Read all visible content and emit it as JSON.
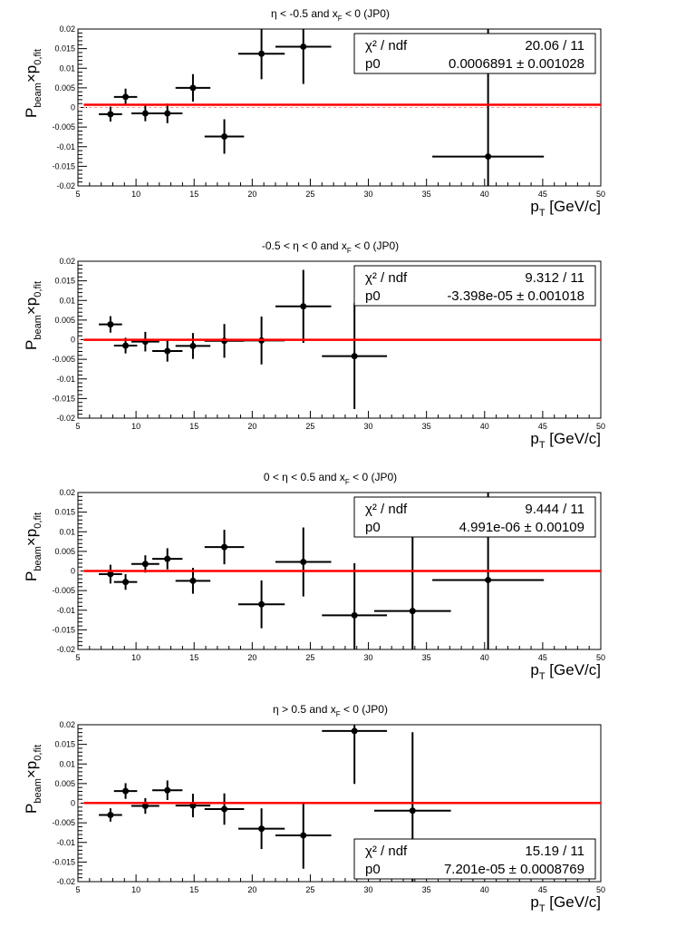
{
  "chart_data": [
    {
      "type": "scatter",
      "title": {
        "pre": "η < -0.5 and x",
        "sub": "F",
        "post": " < 0 (JP0)"
      },
      "xlabel": {
        "main": "p",
        "sub": "T",
        "rest": " [GeV/c]"
      },
      "ylabel": {
        "a": "P",
        "a_sub": "beam",
        "b": "×p",
        "b_sub": "0,fit"
      },
      "xlim": [
        5,
        50
      ],
      "ylim": [
        -0.02,
        0.02
      ],
      "grid": false,
      "stats_box": {
        "position": "top-right",
        "chi2_label": "χ² / ndf",
        "chi2_value": "20.06 / 11",
        "p0_label": "p0",
        "p0_value": "0.0006891 ± 0.001028"
      },
      "fit": {
        "p0": 0.0006891,
        "x_range": [
          5.5,
          50
        ]
      },
      "points": [
        {
          "x": 7.8,
          "y": -0.0017,
          "xerr": 1.0,
          "yerr": 0.0019
        },
        {
          "x": 9.1,
          "y": 0.0027,
          "xerr": 1.0,
          "yerr": 0.0021
        },
        {
          "x": 10.8,
          "y": -0.0015,
          "xerr": 1.2,
          "yerr": 0.002
        },
        {
          "x": 12.7,
          "y": -0.0015,
          "xerr": 1.3,
          "yerr": 0.0025
        },
        {
          "x": 14.9,
          "y": 0.005,
          "xerr": 1.5,
          "yerr": 0.0035
        },
        {
          "x": 17.6,
          "y": -0.0074,
          "xerr": 1.7,
          "yerr": 0.0044
        },
        {
          "x": 20.8,
          "y": 0.0137,
          "xerr": 2.0,
          "yerr": 0.0065
        },
        {
          "x": 24.4,
          "y": 0.0155,
          "xerr": 2.4,
          "yerr": 0.0095
        },
        {
          "x": 40.3,
          "y": -0.0125,
          "xerr": 4.8,
          "yerr": 0.033
        }
      ]
    },
    {
      "type": "scatter",
      "title": {
        "pre": "-0.5 < η < 0 and x",
        "sub": "F",
        "post": " < 0 (JP0)"
      },
      "xlabel": {
        "main": "p",
        "sub": "T",
        "rest": " [GeV/c]"
      },
      "ylabel": {
        "a": "P",
        "a_sub": "beam",
        "b": "×p",
        "b_sub": "0,fit"
      },
      "xlim": [
        5,
        50
      ],
      "ylim": [
        -0.02,
        0.02
      ],
      "grid": false,
      "stats_box": {
        "position": "top-right",
        "chi2_label": "χ² / ndf",
        "chi2_value": "9.312 / 11",
        "p0_label": "p0",
        "p0_value": "-3.398e-05 ± 0.001018"
      },
      "fit": {
        "p0": -3.398e-05,
        "x_range": [
          5.5,
          50
        ]
      },
      "points": [
        {
          "x": 7.8,
          "y": 0.0039,
          "xerr": 1.0,
          "yerr": 0.0021
        },
        {
          "x": 9.1,
          "y": -0.0015,
          "xerr": 1.0,
          "yerr": 0.002
        },
        {
          "x": 10.8,
          "y": -0.0005,
          "xerr": 1.2,
          "yerr": 0.0025
        },
        {
          "x": 12.7,
          "y": -0.0029,
          "xerr": 1.3,
          "yerr": 0.0027
        },
        {
          "x": 14.9,
          "y": -0.0016,
          "xerr": 1.5,
          "yerr": 0.0033
        },
        {
          "x": 17.6,
          "y": -0.0003,
          "xerr": 1.7,
          "yerr": 0.0043
        },
        {
          "x": 20.8,
          "y": -0.0002,
          "xerr": 2.0,
          "yerr": 0.0061
        },
        {
          "x": 24.4,
          "y": 0.0085,
          "xerr": 2.4,
          "yerr": 0.0093
        },
        {
          "x": 28.8,
          "y": -0.0042,
          "xerr": 2.8,
          "yerr": 0.0135
        }
      ]
    },
    {
      "type": "scatter",
      "title": {
        "pre": "0 < η < 0.5 and x",
        "sub": "F",
        "post": " < 0 (JP0)"
      },
      "xlabel": {
        "main": "p",
        "sub": "T",
        "rest": " [GeV/c]"
      },
      "ylabel": {
        "a": "P",
        "a_sub": "beam",
        "b": "×p",
        "b_sub": "0,fit"
      },
      "xlim": [
        5,
        50
      ],
      "ylim": [
        -0.02,
        0.02
      ],
      "grid": false,
      "stats_box": {
        "position": "top-right",
        "chi2_label": "χ² / ndf",
        "chi2_value": "9.444 / 11",
        "p0_label": "p0",
        "p0_value": "4.991e-06 ± 0.00109"
      },
      "fit": {
        "p0": 4.991e-06,
        "x_range": [
          5.5,
          50
        ]
      },
      "points": [
        {
          "x": 7.8,
          "y": -0.0008,
          "xerr": 1.0,
          "yerr": 0.0024
        },
        {
          "x": 9.1,
          "y": -0.0028,
          "xerr": 1.0,
          "yerr": 0.002
        },
        {
          "x": 10.8,
          "y": 0.0018,
          "xerr": 1.2,
          "yerr": 0.0022
        },
        {
          "x": 12.7,
          "y": 0.0031,
          "xerr": 1.3,
          "yerr": 0.0027
        },
        {
          "x": 14.9,
          "y": -0.0025,
          "xerr": 1.5,
          "yerr": 0.0033
        },
        {
          "x": 17.6,
          "y": 0.0061,
          "xerr": 1.7,
          "yerr": 0.0044
        },
        {
          "x": 20.8,
          "y": -0.0085,
          "xerr": 2.0,
          "yerr": 0.0061
        },
        {
          "x": 24.4,
          "y": 0.0023,
          "xerr": 2.4,
          "yerr": 0.0088
        },
        {
          "x": 28.8,
          "y": -0.0113,
          "xerr": 2.8,
          "yerr": 0.0133
        },
        {
          "x": 33.8,
          "y": -0.0102,
          "xerr": 3.3,
          "yerr": 0.02
        },
        {
          "x": 40.3,
          "y": -0.0023,
          "xerr": 4.8,
          "yerr": 0.023
        }
      ]
    },
    {
      "type": "scatter",
      "title": {
        "pre": "η > 0.5 and x",
        "sub": "F",
        "post": " < 0 (JP0)"
      },
      "xlabel": {
        "main": "p",
        "sub": "T",
        "rest": " [GeV/c]"
      },
      "ylabel": {
        "a": "P",
        "a_sub": "beam",
        "b": "×p",
        "b_sub": "0,fit"
      },
      "xlim": [
        5,
        50
      ],
      "ylim": [
        -0.02,
        0.02
      ],
      "grid": false,
      "stats_box": {
        "position": "bottom-right",
        "chi2_label": "χ² / ndf",
        "chi2_value": "15.19 / 11",
        "p0_label": "p0",
        "p0_value": "7.201e-05 ± 0.0008769"
      },
      "fit": {
        "p0": 7.201e-05,
        "x_range": [
          5.5,
          50
        ]
      },
      "points": [
        {
          "x": 7.8,
          "y": -0.003,
          "xerr": 1.0,
          "yerr": 0.0017
        },
        {
          "x": 9.1,
          "y": 0.0031,
          "xerr": 1.0,
          "yerr": 0.002
        },
        {
          "x": 10.8,
          "y": -0.0007,
          "xerr": 1.2,
          "yerr": 0.002
        },
        {
          "x": 12.7,
          "y": 0.0033,
          "xerr": 1.3,
          "yerr": 0.0025
        },
        {
          "x": 14.9,
          "y": -0.0006,
          "xerr": 1.5,
          "yerr": 0.003
        },
        {
          "x": 17.6,
          "y": -0.0015,
          "xerr": 1.7,
          "yerr": 0.004
        },
        {
          "x": 20.8,
          "y": -0.0065,
          "xerr": 2.0,
          "yerr": 0.0052
        },
        {
          "x": 24.4,
          "y": -0.0082,
          "xerr": 2.4,
          "yerr": 0.0085
        },
        {
          "x": 28.8,
          "y": 0.0184,
          "xerr": 2.8,
          "yerr": 0.0135
        },
        {
          "x": 33.8,
          "y": -0.0019,
          "xerr": 3.3,
          "yerr": 0.02
        }
      ]
    }
  ],
  "colors": {
    "fit_line": "#ff0000",
    "markers": "#000000",
    "axes": "#000000",
    "zero_line": "#ff9999"
  }
}
